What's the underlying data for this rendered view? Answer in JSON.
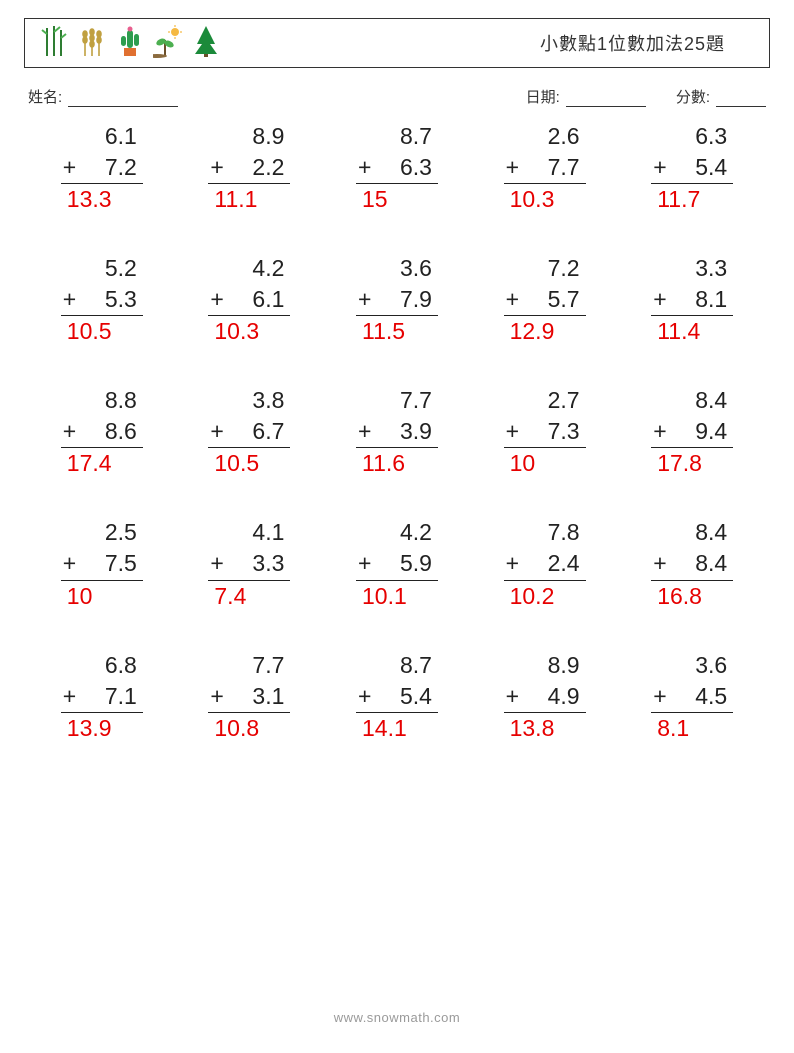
{
  "header": {
    "title": "小數點1位數加法25題"
  },
  "meta": {
    "name_label": "姓名:",
    "date_label": "日期:",
    "score_label": "分數:"
  },
  "icon_colors": {
    "bamboo": "#2e7d32",
    "wheat": "#c0a040",
    "cactus_pot": "#e07030",
    "cactus": "#2e9d4f",
    "sprout_leaf": "#4caf50",
    "sprout_sun": "#f5b942",
    "tree": "#1b8a3a"
  },
  "answer_color": "#e60000",
  "problems": [
    {
      "a": "6.1",
      "b": "7.2",
      "ans": "13.3"
    },
    {
      "a": "8.9",
      "b": "2.2",
      "ans": "11.1"
    },
    {
      "a": "8.7",
      "b": "6.3",
      "ans": "15"
    },
    {
      "a": "2.6",
      "b": "7.7",
      "ans": "10.3"
    },
    {
      "a": "6.3",
      "b": "5.4",
      "ans": "11.7"
    },
    {
      "a": "5.2",
      "b": "5.3",
      "ans": "10.5"
    },
    {
      "a": "4.2",
      "b": "6.1",
      "ans": "10.3"
    },
    {
      "a": "3.6",
      "b": "7.9",
      "ans": "11.5"
    },
    {
      "a": "7.2",
      "b": "5.7",
      "ans": "12.9"
    },
    {
      "a": "3.3",
      "b": "8.1",
      "ans": "11.4"
    },
    {
      "a": "8.8",
      "b": "8.6",
      "ans": "17.4"
    },
    {
      "a": "3.8",
      "b": "6.7",
      "ans": "10.5"
    },
    {
      "a": "7.7",
      "b": "3.9",
      "ans": "11.6"
    },
    {
      "a": "2.7",
      "b": "7.3",
      "ans": "10"
    },
    {
      "a": "8.4",
      "b": "9.4",
      "ans": "17.8"
    },
    {
      "a": "2.5",
      "b": "7.5",
      "ans": "10"
    },
    {
      "a": "4.1",
      "b": "3.3",
      "ans": "7.4"
    },
    {
      "a": "4.2",
      "b": "5.9",
      "ans": "10.1"
    },
    {
      "a": "7.8",
      "b": "2.4",
      "ans": "10.2"
    },
    {
      "a": "8.4",
      "b": "8.4",
      "ans": "16.8"
    },
    {
      "a": "6.8",
      "b": "7.1",
      "ans": "13.9"
    },
    {
      "a": "7.7",
      "b": "3.1",
      "ans": "10.8"
    },
    {
      "a": "8.7",
      "b": "5.4",
      "ans": "14.1"
    },
    {
      "a": "8.9",
      "b": "4.9",
      "ans": "13.8"
    },
    {
      "a": "3.6",
      "b": "4.5",
      "ans": "8.1"
    }
  ],
  "footer": "www.snowmath.com"
}
